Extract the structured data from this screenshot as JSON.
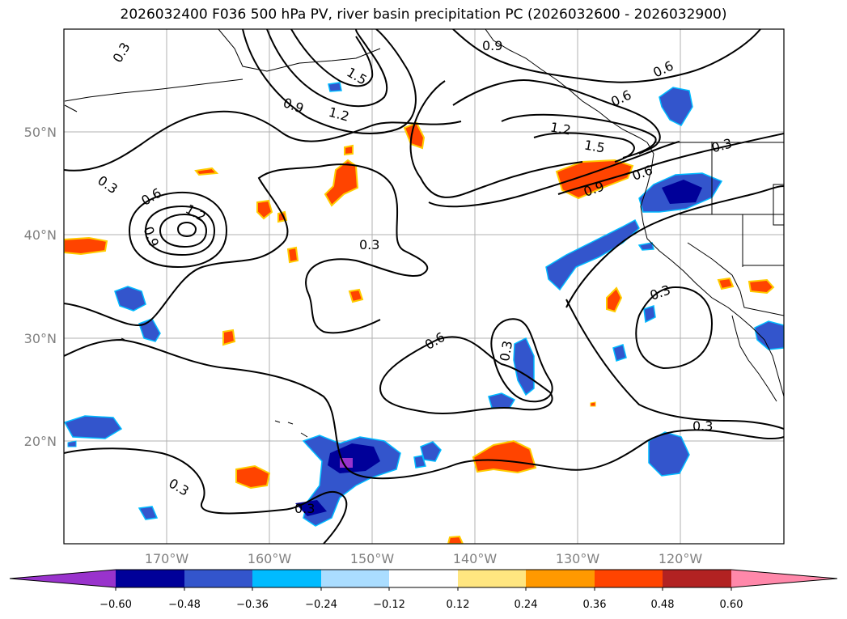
{
  "title": "2026032400 F036 500 hPa PV, river basin precipitation PC (2026032600 - 2026032900)",
  "latitude_labels": [
    "50°N",
    "40°N",
    "30°N",
    "20°N"
  ],
  "longitude_labels": [
    "170°W",
    "160°W",
    "150°W",
    "140°W",
    "130°W",
    "120°W"
  ],
  "colorbar": {
    "tick_labels": [
      "−0.60",
      "−0.48",
      "−0.36",
      "−0.24",
      "−0.12",
      "0.12",
      "0.24",
      "0.36",
      "0.48",
      "0.60"
    ],
    "colors": [
      "#9933cc",
      "#000099",
      "#3355cc",
      "#00bbff",
      "#aaddff",
      "#ffffff",
      "#ffe680",
      "#ff9900",
      "#ff4400",
      "#b22222",
      "#ff88aa"
    ]
  },
  "pv_contour_labels": [
    "0.3",
    "0.6",
    "0.9",
    "1.2",
    "1.5"
  ],
  "chart_data": {
    "type": "map",
    "projection": "PlateCarree",
    "lon_range": [
      -180,
      -110
    ],
    "lat_range": [
      10,
      60
    ],
    "pv_contour_levels": [
      0.3,
      0.6,
      0.9,
      1.2,
      1.5
    ],
    "fill_levels": [
      -0.6,
      -0.48,
      -0.36,
      -0.24,
      -0.12,
      0.12,
      0.24,
      0.36,
      0.48,
      0.6
    ],
    "colorbar_extend": "both",
    "gridlines": true
  }
}
